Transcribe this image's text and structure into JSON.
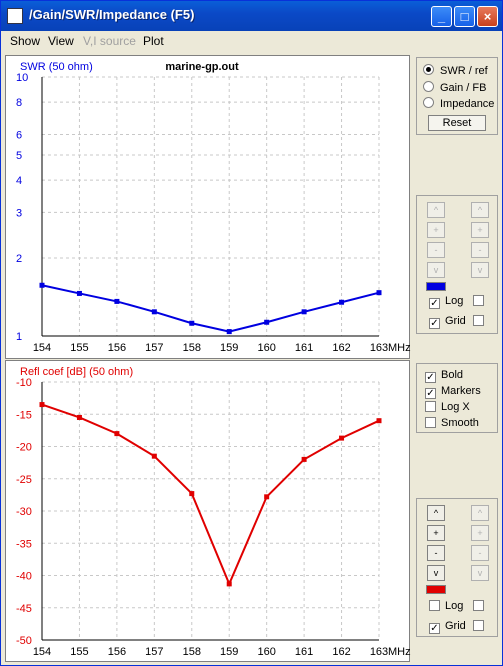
{
  "window": {
    "title": "/Gain/SWR/Impedance  (F5)"
  },
  "menu": [
    {
      "label": "Show",
      "disabled": false
    },
    {
      "label": "View",
      "disabled": false
    },
    {
      "label": "V,I source",
      "disabled": true
    },
    {
      "label": "Plot",
      "disabled": false
    }
  ],
  "mode_panel": {
    "options": [
      "SWR / ref",
      "Gain / FB",
      "Impedance"
    ],
    "selected": "SWR / ref",
    "reset_label": "Reset"
  },
  "top_controls": {
    "swatch_color": "#0000e0",
    "log_label": "Log",
    "log_checked": true,
    "grid_label": "Grid",
    "grid_checked": true
  },
  "options_panel": {
    "bold_label": "Bold",
    "bold_checked": true,
    "markers_label": "Markers",
    "markers_checked": true,
    "logx_label": "Log X",
    "logx_checked": false,
    "smooth_label": "Smooth",
    "smooth_checked": false
  },
  "bottom_controls": {
    "swatch_color": "#e00000",
    "log_label": "Log",
    "log_checked": false,
    "grid_label": "Grid",
    "grid_checked": true
  },
  "scale_buttons": {
    "up": "^",
    "plus": "+",
    "minus": "-",
    "down": "v"
  },
  "chart_data": [
    {
      "type": "line",
      "title": "marine-gp.out",
      "ylabel": "SWR (50 ohm)",
      "x_unit": "MHz",
      "x_ticks": [
        154,
        155,
        156,
        157,
        158,
        159,
        160,
        161,
        162,
        163
      ],
      "y_ticks": [
        1,
        2,
        3,
        4,
        5,
        6,
        8,
        10
      ],
      "y_scale": "log",
      "ylim": [
        1,
        10
      ],
      "xlim": [
        154,
        163
      ],
      "grid": true,
      "color": "#0000e0",
      "series": [
        {
          "x": [
            154,
            155,
            156,
            157,
            158,
            159,
            160,
            161,
            162,
            163
          ],
          "values": [
            1.57,
            1.46,
            1.36,
            1.24,
            1.12,
            1.04,
            1.13,
            1.24,
            1.35,
            1.47
          ]
        }
      ]
    },
    {
      "type": "line",
      "ylabel": "Refl coef [dB] (50 ohm)",
      "x_unit": "MHz",
      "x_ticks": [
        154,
        155,
        156,
        157,
        158,
        159,
        160,
        161,
        162,
        163
      ],
      "y_ticks": [
        -10,
        -15,
        -20,
        -25,
        -30,
        -35,
        -40,
        -45,
        -50
      ],
      "y_scale": "linear",
      "ylim": [
        -50,
        -10
      ],
      "xlim": [
        154,
        163
      ],
      "grid": true,
      "color": "#e00000",
      "series": [
        {
          "x": [
            154,
            155,
            156,
            157,
            158,
            159,
            160,
            161,
            162,
            163
          ],
          "values": [
            -13.5,
            -15.5,
            -18.0,
            -21.5,
            -27.3,
            -41.3,
            -27.8,
            -22.0,
            -18.7,
            -16.0
          ]
        }
      ]
    }
  ]
}
